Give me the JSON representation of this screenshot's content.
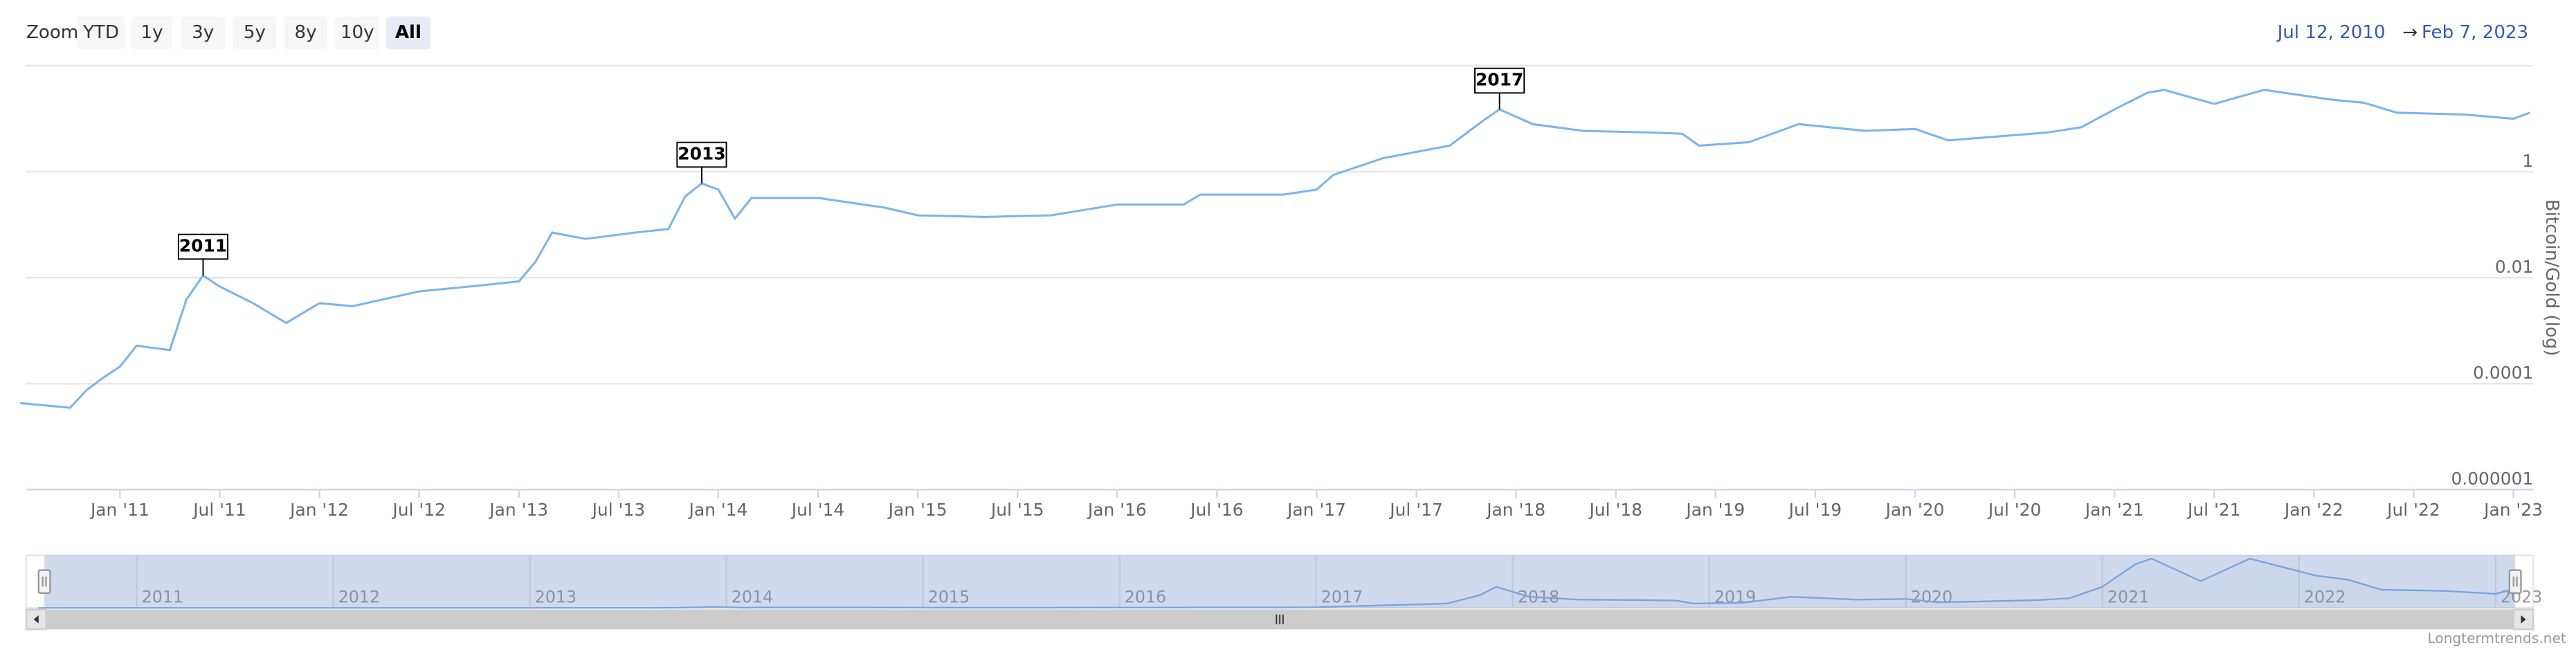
{
  "chart_data": {
    "type": "line",
    "range_selector": {
      "label": "Zoom",
      "buttons": [
        "YTD",
        "1y",
        "3y",
        "5y",
        "8y",
        "10y",
        "All"
      ],
      "selected": 6
    },
    "date_from": "Jul 12, 2010",
    "arrow": "→",
    "date_to": "Feb 7, 2023",
    "y_label": "Bitcoin/Gold (log)",
    "log_y": true,
    "grid": true,
    "ylim": [
      1e-06,
      100
    ],
    "yticks": [
      1e-06,
      0.0001,
      0.01,
      1
    ],
    "xlim": [
      "2010-07-12",
      "2023-02-07"
    ],
    "xticks": [
      {
        "value": "2011-01",
        "label": "Jan '11"
      },
      {
        "value": "2011-07",
        "label": "Jul '11"
      },
      {
        "value": "2012-01",
        "label": "Jan '12"
      },
      {
        "value": "2012-07",
        "label": "Jul '12"
      },
      {
        "value": "2013-01",
        "label": "Jan '13"
      },
      {
        "value": "2013-07",
        "label": "Jul '13"
      },
      {
        "value": "2014-01",
        "label": "Jan '14"
      },
      {
        "value": "2014-07",
        "label": "Jul '14"
      },
      {
        "value": "2015-01",
        "label": "Jan '15"
      },
      {
        "value": "2015-07",
        "label": "Jul '15"
      },
      {
        "value": "2016-01",
        "label": "Jan '16"
      },
      {
        "value": "2016-07",
        "label": "Jul '16"
      },
      {
        "value": "2017-01",
        "label": "Jan '17"
      },
      {
        "value": "2017-07",
        "label": "Jul '17"
      },
      {
        "value": "2018-01",
        "label": "Jan '18"
      },
      {
        "value": "2018-07",
        "label": "Jul '18"
      },
      {
        "value": "2019-01",
        "label": "Jan '19"
      },
      {
        "value": "2019-07",
        "label": "Jul '19"
      },
      {
        "value": "2020-01",
        "label": "Jan '20"
      },
      {
        "value": "2020-07",
        "label": "Jul '20"
      },
      {
        "value": "2021-01",
        "label": "Jan '21"
      },
      {
        "value": "2021-07",
        "label": "Jul '21"
      },
      {
        "value": "2022-01",
        "label": "Jan '22"
      },
      {
        "value": "2022-07",
        "label": "Jul '22"
      },
      {
        "value": "2023-01",
        "label": "Jan '23"
      }
    ],
    "x": [
      "2010-07",
      "2010-10",
      "2010-11",
      "2010-12",
      "2011-01",
      "2011-02",
      "2011-04",
      "2011-05",
      "2011-06",
      "2011-07",
      "2011-09",
      "2011-11",
      "2012-01",
      "2012-03",
      "2012-07",
      "2012-11",
      "2013-01",
      "2013-02",
      "2013-03",
      "2013-05",
      "2013-08",
      "2013-10",
      "2013-11",
      "2013-12",
      "2014-01",
      "2014-02",
      "2014-03",
      "2014-07",
      "2014-11",
      "2015-01",
      "2015-05",
      "2015-09",
      "2016-01",
      "2016-05",
      "2016-06",
      "2016-11",
      "2017-01",
      "2017-02",
      "2017-05",
      "2017-09",
      "2017-11",
      "2017-12",
      "2018-02",
      "2018-05",
      "2018-09",
      "2018-11",
      "2018-12",
      "2019-03",
      "2019-06",
      "2019-10",
      "2020-01",
      "2020-03",
      "2020-09",
      "2020-11",
      "2021-01",
      "2021-03",
      "2021-04",
      "2021-07",
      "2021-10",
      "2022-02",
      "2022-04",
      "2022-06",
      "2022-10",
      "2023-01",
      "2023-02"
    ],
    "series": [
      {
        "name": "Bitcoin/Gold",
        "color": "#7cb5ec",
        "values": [
          4.3e-05,
          3.5e-05,
          7.6e-05,
          0.00013,
          0.00021,
          0.00052,
          0.00043,
          0.0039,
          0.011,
          0.0068,
          0.0033,
          0.0014,
          0.0033,
          0.0029,
          0.0055,
          0.0073,
          0.0085,
          0.02,
          0.071,
          0.054,
          0.071,
          0.083,
          0.34,
          0.6,
          0.46,
          0.13,
          0.32,
          0.32,
          0.21,
          0.15,
          0.14,
          0.15,
          0.24,
          0.24,
          0.37,
          0.37,
          0.46,
          0.87,
          1.8,
          3.1,
          9.1,
          15,
          7.9,
          5.9,
          5.5,
          5.2,
          3.1,
          3.6,
          7.9,
          5.9,
          6.4,
          3.9,
          5.5,
          6.9,
          15,
          31,
          35,
          19,
          35,
          23,
          20,
          13,
          12,
          10,
          13
        ]
      }
    ],
    "annotations": [
      {
        "label": "2011",
        "x": "2011-06"
      },
      {
        "label": "2013",
        "x": "2013-12"
      },
      {
        "label": "2017",
        "x": "2017-12"
      }
    ],
    "navigator_ticks": [
      {
        "value": "2011-01",
        "label": "2011"
      },
      {
        "value": "2012-01",
        "label": "2012"
      },
      {
        "value": "2013-01",
        "label": "2013"
      },
      {
        "value": "2014-01",
        "label": "2014"
      },
      {
        "value": "2015-01",
        "label": "2015"
      },
      {
        "value": "2016-01",
        "label": "2016"
      },
      {
        "value": "2017-01",
        "label": "2017"
      },
      {
        "value": "2018-01",
        "label": "2018"
      },
      {
        "value": "2019-01",
        "label": "2019"
      },
      {
        "value": "2020-01",
        "label": "2020"
      },
      {
        "value": "2021-01",
        "label": "2021"
      },
      {
        "value": "2022-01",
        "label": "2022"
      },
      {
        "value": "2023-01",
        "label": "2023"
      }
    ],
    "credit": "Longtermtrends.net"
  }
}
